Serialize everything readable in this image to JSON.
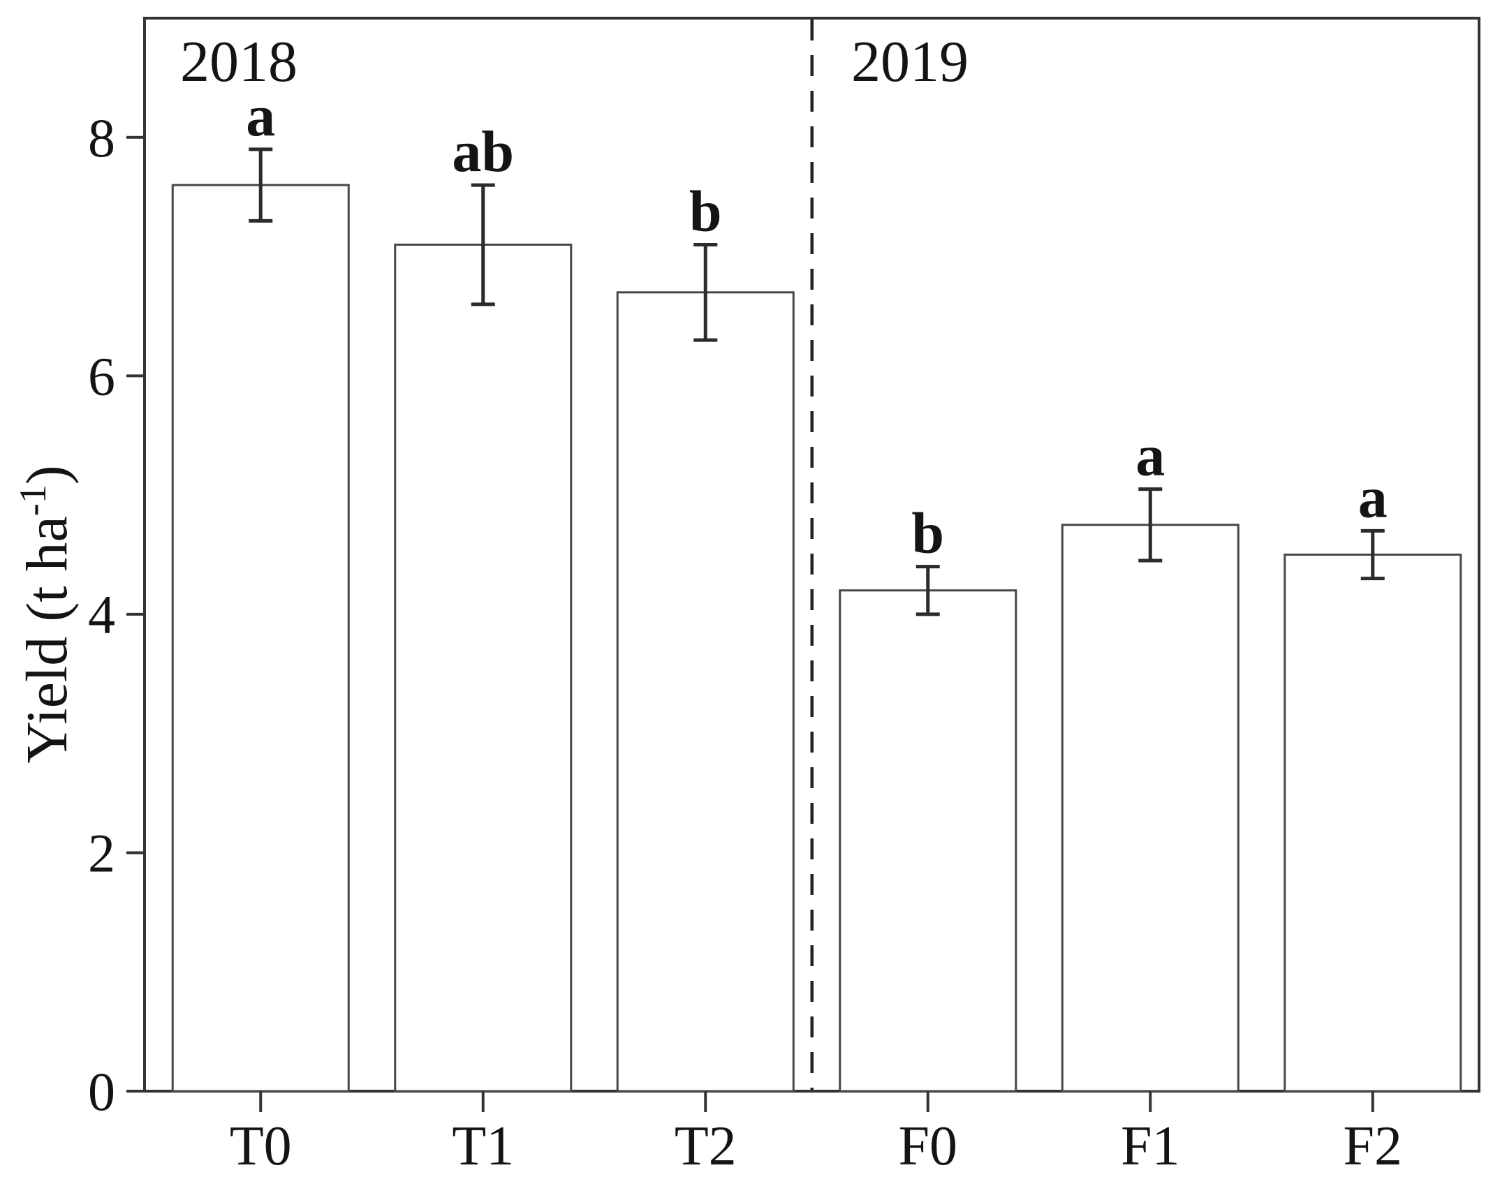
{
  "chart_data": {
    "type": "bar",
    "title": "",
    "xlabel": "",
    "ylabel": "Yield (t ha⁻¹)",
    "ylabel_parts": {
      "main": "Yield (t ha",
      "sup": "-1",
      "end": ")"
    },
    "categories": [
      "T0",
      "T1",
      "T2",
      "F0",
      "F1",
      "F2"
    ],
    "values": [
      7.6,
      7.1,
      6.7,
      4.2,
      4.75,
      4.5
    ],
    "errors": [
      0.3,
      0.5,
      0.4,
      0.2,
      0.3,
      0.2
    ],
    "sig_letters": [
      "a",
      "ab",
      "b",
      "b",
      "a",
      "a"
    ],
    "groups": [
      {
        "label": "2018",
        "categories": [
          "T0",
          "T1",
          "T2"
        ]
      },
      {
        "label": "2019",
        "categories": [
          "F0",
          "F1",
          "F2"
        ]
      }
    ],
    "separator": {
      "style": "dashed",
      "after_category": "T2"
    },
    "ylim": [
      0,
      9
    ],
    "yticks": [
      0,
      2,
      4,
      6,
      8
    ],
    "grid": false,
    "legend": null,
    "bar_fill": "#ffffff",
    "bar_stroke": "#474747",
    "error_color": "#2b2b2b",
    "axis_color": "#333333",
    "text_color": "#141414"
  }
}
